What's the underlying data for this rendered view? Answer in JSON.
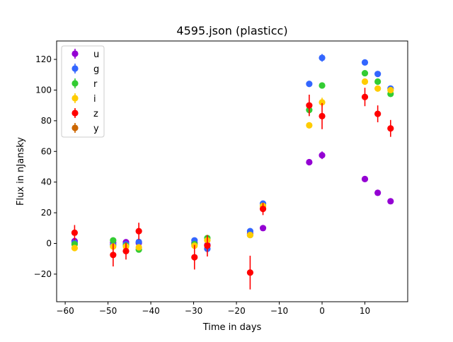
{
  "chart_data": {
    "type": "scatter",
    "title": "4595.json (plasticc)",
    "xlabel": "Time in days",
    "ylabel": "Flux in nJansky",
    "xlim": [
      -62,
      20
    ],
    "ylim": [
      -38,
      132
    ],
    "x_ticks": [
      -60,
      -50,
      -40,
      -30,
      -20,
      -10,
      0,
      10
    ],
    "y_ticks": [
      -20,
      0,
      20,
      40,
      60,
      80,
      100,
      120
    ],
    "x_tick_labels": [
      "−60",
      "−50",
      "−40",
      "−30",
      "−20",
      "−10",
      "0",
      "10"
    ],
    "y_tick_labels": [
      "−20",
      "0",
      "20",
      "40",
      "60",
      "80",
      "100",
      "120"
    ],
    "legend_position": "top-left",
    "grid": false,
    "error_bars": true,
    "series": [
      {
        "name": "u",
        "color": "#9400d3",
        "points": [
          {
            "x": -57.8,
            "y": 1.5,
            "err": 1.2
          },
          {
            "x": -48.8,
            "y": 0.5,
            "err": 1.0
          },
          {
            "x": -45.8,
            "y": 0.8,
            "err": 1.0
          },
          {
            "x": -42.8,
            "y": 0.3,
            "err": 1.0
          },
          {
            "x": -29.8,
            "y": 0.5,
            "err": 1.0
          },
          {
            "x": -26.8,
            "y": -1.0,
            "err": 1.0
          },
          {
            "x": -16.8,
            "y": 6.5,
            "err": 1.2
          },
          {
            "x": -13.8,
            "y": 10.0,
            "err": 1.2
          },
          {
            "x": -3.0,
            "y": 53.0,
            "err": 1.5
          },
          {
            "x": 0.0,
            "y": 57.5,
            "err": 2.5
          },
          {
            "x": 10.0,
            "y": 42.0,
            "err": 1.5
          },
          {
            "x": 13.0,
            "y": 33.0,
            "err": 1.5
          },
          {
            "x": 16.0,
            "y": 27.5,
            "err": 1.5
          }
        ]
      },
      {
        "name": "g",
        "color": "#3366ff",
        "points": [
          {
            "x": -57.8,
            "y": 0.5,
            "err": 1.5
          },
          {
            "x": -48.8,
            "y": -1.0,
            "err": 1.5
          },
          {
            "x": -45.8,
            "y": -0.5,
            "err": 1.5
          },
          {
            "x": -42.8,
            "y": 1.0,
            "err": 1.5
          },
          {
            "x": -29.8,
            "y": 2.0,
            "err": 1.5
          },
          {
            "x": -26.8,
            "y": -3.5,
            "err": 1.5
          },
          {
            "x": -16.8,
            "y": 8.0,
            "err": 1.5
          },
          {
            "x": -13.8,
            "y": 26.0,
            "err": 1.5
          },
          {
            "x": -3.0,
            "y": 104.0,
            "err": 1.5
          },
          {
            "x": 0.0,
            "y": 121.0,
            "err": 2.5
          },
          {
            "x": 10.0,
            "y": 118.0,
            "err": 1.5
          },
          {
            "x": 13.0,
            "y": 110.5,
            "err": 1.5
          },
          {
            "x": 16.0,
            "y": 101.0,
            "err": 1.5
          }
        ]
      },
      {
        "name": "r",
        "color": "#33cc33",
        "points": [
          {
            "x": -57.8,
            "y": -0.5,
            "err": 1.5
          },
          {
            "x": -48.8,
            "y": 2.0,
            "err": 2.0
          },
          {
            "x": -45.8,
            "y": -1.5,
            "err": 1.5
          },
          {
            "x": -42.8,
            "y": -4.0,
            "err": 1.5
          },
          {
            "x": -29.8,
            "y": -0.5,
            "err": 1.5
          },
          {
            "x": -26.8,
            "y": 3.5,
            "err": 2.0
          },
          {
            "x": -16.8,
            "y": 5.5,
            "err": 1.5
          },
          {
            "x": -13.8,
            "y": 24.5,
            "err": 1.5
          },
          {
            "x": -3.0,
            "y": 87.0,
            "err": 2.5
          },
          {
            "x": 0.0,
            "y": 103.0,
            "err": 2.0
          },
          {
            "x": 10.0,
            "y": 111.0,
            "err": 1.5
          },
          {
            "x": 13.0,
            "y": 105.5,
            "err": 1.5
          },
          {
            "x": 16.0,
            "y": 97.5,
            "err": 1.5
          }
        ]
      },
      {
        "name": "i",
        "color": "#ffcc00",
        "points": [
          {
            "x": -57.8,
            "y": -3.0,
            "err": 1.5
          },
          {
            "x": -48.8,
            "y": -2.0,
            "err": 2.0
          },
          {
            "x": -45.8,
            "y": -2.0,
            "err": 2.0
          },
          {
            "x": -42.8,
            "y": -2.5,
            "err": 2.0
          },
          {
            "x": -29.8,
            "y": -1.5,
            "err": 2.0
          },
          {
            "x": -26.8,
            "y": 2.0,
            "err": 2.0
          },
          {
            "x": -16.8,
            "y": 5.5,
            "err": 1.5
          },
          {
            "x": -13.8,
            "y": 24.5,
            "err": 1.5
          },
          {
            "x": -3.0,
            "y": 77.0,
            "err": 2.0
          },
          {
            "x": 0.0,
            "y": 92.0,
            "err": 3.0
          },
          {
            "x": 10.0,
            "y": 105.5,
            "err": 2.0
          },
          {
            "x": 13.0,
            "y": 101.0,
            "err": 2.0
          },
          {
            "x": 16.0,
            "y": 100.0,
            "err": 2.0
          }
        ]
      },
      {
        "name": "z",
        "color": "#ff0000",
        "points": [
          {
            "x": -57.8,
            "y": 7.0,
            "err": 5.0
          },
          {
            "x": -48.8,
            "y": -7.5,
            "err": 7.5
          },
          {
            "x": -45.8,
            "y": -5.0,
            "err": 5.5
          },
          {
            "x": -42.8,
            "y": 8.0,
            "err": 5.5
          },
          {
            "x": -29.8,
            "y": -9.0,
            "err": 8.0
          },
          {
            "x": -26.8,
            "y": -1.5,
            "err": 7.0
          },
          {
            "x": -16.8,
            "y": -19.0,
            "err": 11.0
          },
          {
            "x": -13.8,
            "y": 22.5,
            "err": 4.0
          },
          {
            "x": -3.0,
            "y": 90.0,
            "err": 7.0
          },
          {
            "x": 0.0,
            "y": 83.0,
            "err": 8.5
          },
          {
            "x": 10.0,
            "y": 95.5,
            "err": 6.0
          },
          {
            "x": 13.0,
            "y": 84.5,
            "err": 5.5
          },
          {
            "x": 16.0,
            "y": 75.0,
            "err": 5.5
          }
        ]
      },
      {
        "name": "y",
        "color": "#cc6600",
        "points": []
      }
    ]
  }
}
